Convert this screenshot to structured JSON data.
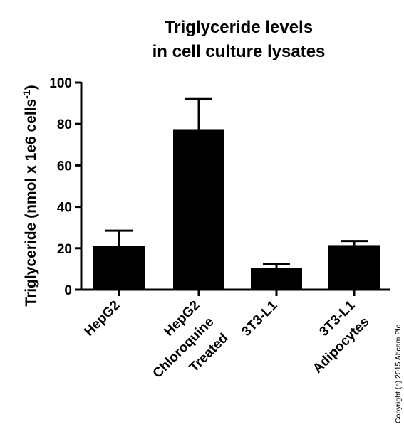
{
  "chart_data": {
    "type": "bar",
    "title_lines": [
      "Triglyceride levels",
      "in cell culture lysates"
    ],
    "ylabel": "Triglyceride (nmol x 1e6 cells",
    "ylabel_superscript": "-1",
    "ylabel_suffix": ")",
    "xlabel": "",
    "ylim": [
      0,
      100
    ],
    "yticks": [
      "0",
      "20",
      "40",
      "60",
      "80",
      "100"
    ],
    "categories": [
      {
        "lines": [
          "HepG2"
        ]
      },
      {
        "lines": [
          "HepG2",
          "Chloroquine",
          "Treated"
        ]
      },
      {
        "lines": [
          "3T3-L1"
        ]
      },
      {
        "lines": [
          "3T3-L1",
          "Adipocytes"
        ]
      }
    ],
    "values": [
      21,
      77.5,
      10.5,
      21.5
    ],
    "error_upper": [
      28.5,
      92,
      12.5,
      23.5
    ],
    "bar_color": "#000000",
    "grid": false,
    "legend": "none"
  },
  "copyright": "Copyright (c) 2015 Abcam Plc"
}
